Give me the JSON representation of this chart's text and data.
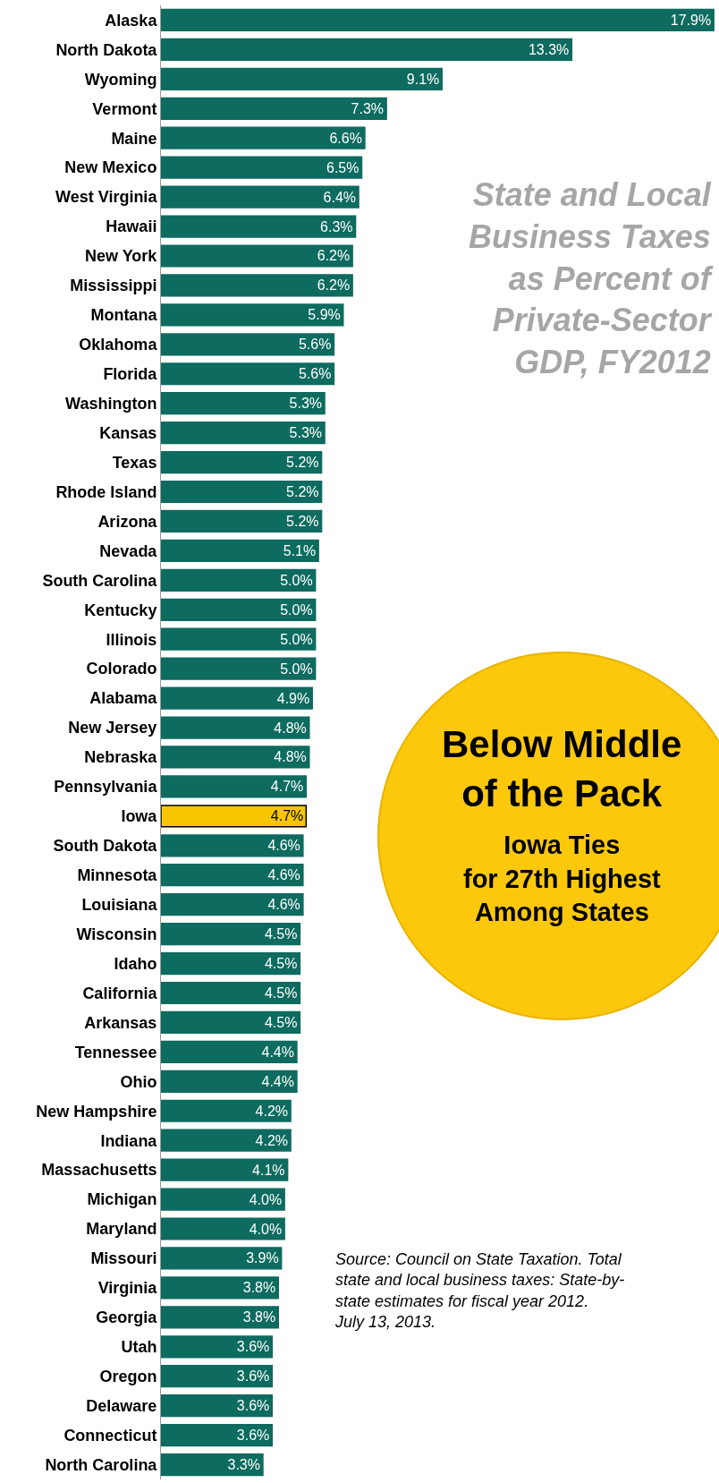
{
  "chart_data": {
    "type": "bar",
    "orientation": "horizontal",
    "title": "State and Local\nBusiness Taxes\nas Percent of\nPrivate-Sector\nGDP, FY2012",
    "categories": [
      "Alaska",
      "North Dakota",
      "Wyoming",
      "Vermont",
      "Maine",
      "New Mexico",
      "West Virginia",
      "Hawaii",
      "New York",
      "Mississippi",
      "Montana",
      "Oklahoma",
      "Florida",
      "Washington",
      "Kansas",
      "Texas",
      "Rhode Island",
      "Arizona",
      "Nevada",
      "South Carolina",
      "Kentucky",
      "Illinois",
      "Colorado",
      "Alabama",
      "New Jersey",
      "Nebraska",
      "Pennsylvania",
      "Iowa",
      "South Dakota",
      "Minnesota",
      "Louisiana",
      "Wisconsin",
      "Idaho",
      "California",
      "Arkansas",
      "Tennessee",
      "Ohio",
      "New Hampshire",
      "Indiana",
      "Massachusetts",
      "Michigan",
      "Maryland",
      "Missouri",
      "Virginia",
      "Georgia",
      "Utah",
      "Oregon",
      "Delaware",
      "Connecticut",
      "North Carolina"
    ],
    "values": [
      17.9,
      13.3,
      9.1,
      7.3,
      6.6,
      6.5,
      6.4,
      6.3,
      6.2,
      6.2,
      5.9,
      5.6,
      5.6,
      5.3,
      5.3,
      5.2,
      5.2,
      5.2,
      5.1,
      5.0,
      5.0,
      5.0,
      5.0,
      4.9,
      4.8,
      4.8,
      4.7,
      4.7,
      4.6,
      4.6,
      4.6,
      4.5,
      4.5,
      4.5,
      4.5,
      4.4,
      4.4,
      4.2,
      4.2,
      4.1,
      4.0,
      4.0,
      3.9,
      3.8,
      3.8,
      3.6,
      3.6,
      3.6,
      3.6,
      3.3
    ],
    "value_labels": [
      "17.9%",
      "13.3%",
      "9.1%",
      "7.3%",
      "6.6%",
      "6.5%",
      "6.4%",
      "6.3%",
      "6.2%",
      "6.2%",
      "5.9%",
      "5.6%",
      "5.6%",
      "5.3%",
      "5.3%",
      "5.2%",
      "5.2%",
      "5.2%",
      "5.1%",
      "5.0%",
      "5.0%",
      "5.0%",
      "5.0%",
      "4.9%",
      "4.8%",
      "4.8%",
      "4.7%",
      "4.7%",
      "4.6%",
      "4.6%",
      "4.6%",
      "4.5%",
      "4.5%",
      "4.5%",
      "4.5%",
      "4.4%",
      "4.4%",
      "4.2%",
      "4.2%",
      "4.1%",
      "4.0%",
      "4.0%",
      "3.9%",
      "3.8%",
      "3.8%",
      "3.6%",
      "3.6%",
      "3.6%",
      "3.6%",
      "3.3%"
    ],
    "colors": [
      "#0e6b5f",
      "#0e6b5f",
      "#0e6b5f",
      "#0e6b5f",
      "#0e6b5f",
      "#0e6b5f",
      "#0e6b5f",
      "#0e6b5f",
      "#0e6b5f",
      "#0e6b5f",
      "#0e6b5f",
      "#0e6b5f",
      "#0e6b5f",
      "#0e6b5f",
      "#0e6b5f",
      "#0e6b5f",
      "#0e6b5f",
      "#0e6b5f",
      "#0e6b5f",
      "#0e6b5f",
      "#0e6b5f",
      "#0e6b5f",
      "#0e6b5f",
      "#0e6b5f",
      "#0e6b5f",
      "#0e6b5f",
      "#0e6b5f",
      "#f7c600",
      "#0e6b5f",
      "#0e6b5f",
      "#0e6b5f",
      "#0e6b5f",
      "#0e6b5f",
      "#0e6b5f",
      "#0e6b5f",
      "#0e6b5f",
      "#0e6b5f",
      "#0e6b5f",
      "#0e6b5f",
      "#0e6b5f",
      "#0e6b5f",
      "#0e6b5f",
      "#0e6b5f",
      "#0e6b5f",
      "#0e6b5f",
      "#0e6b5f",
      "#0e6b5f",
      "#0e6b5f",
      "#0e6b5f",
      "#0e6b5f"
    ],
    "annotations": [
      "Below Middle\nof the Pack",
      "Iowa Ties\nfor 27th Highest\nAmong States",
      "Source: Council on State Taxation. Total\nstate and local business taxes: State-by-\nstate estimates for fiscal year 2012.\nJuly 13, 2013."
    ],
    "grid": false,
    "legend": false,
    "tick_labels": "y"
  }
}
